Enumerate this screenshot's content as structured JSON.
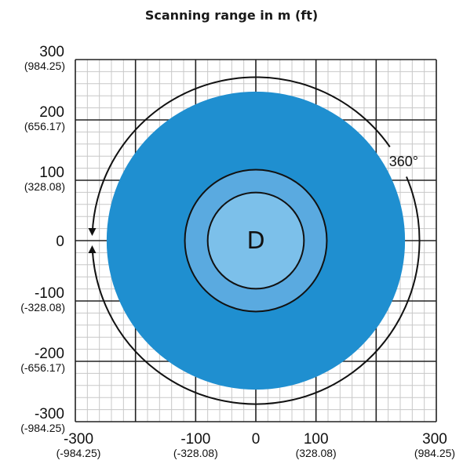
{
  "title": "Scanning range in m (ft)",
  "chart_data": {
    "type": "diagram",
    "title": "Scanning range in m (ft)",
    "xlim": [
      -300,
      300
    ],
    "ylim": [
      -300,
      300
    ],
    "grid": true,
    "y_ticks": [
      {
        "value": 300,
        "label": "300",
        "sub": "(984.25)"
      },
      {
        "value": 200,
        "label": "200",
        "sub": "(656.17)"
      },
      {
        "value": 100,
        "label": "100",
        "sub": "(328.08)"
      },
      {
        "value": 0,
        "label": "0",
        "sub": ""
      },
      {
        "value": -100,
        "label": "-100",
        "sub": "(-328.08)"
      },
      {
        "value": -200,
        "label": "-200",
        "sub": "(-656.17)"
      },
      {
        "value": -300,
        "label": "-300",
        "sub": "(-984.25)"
      }
    ],
    "x_ticks": [
      {
        "value": -300,
        "label": "-300",
        "sub": "(-984.25)"
      },
      {
        "value": -100,
        "label": "-100",
        "sub": "(-328.08)"
      },
      {
        "value": 0,
        "label": "0",
        "sub": ""
      },
      {
        "value": 100,
        "label": "100",
        "sub": "(328.08)"
      },
      {
        "value": 300,
        "label": "300",
        "sub": "(984.25)"
      }
    ],
    "zones": [
      {
        "name": "outer",
        "radius": 248,
        "color": "#1f8fd0"
      },
      {
        "name": "middle",
        "radius": 118,
        "color": "#5aaae0"
      },
      {
        "name": "inner",
        "radius": 80,
        "color": "#7cc0ea"
      }
    ],
    "rotation_label": "360°",
    "center_label": "D"
  }
}
